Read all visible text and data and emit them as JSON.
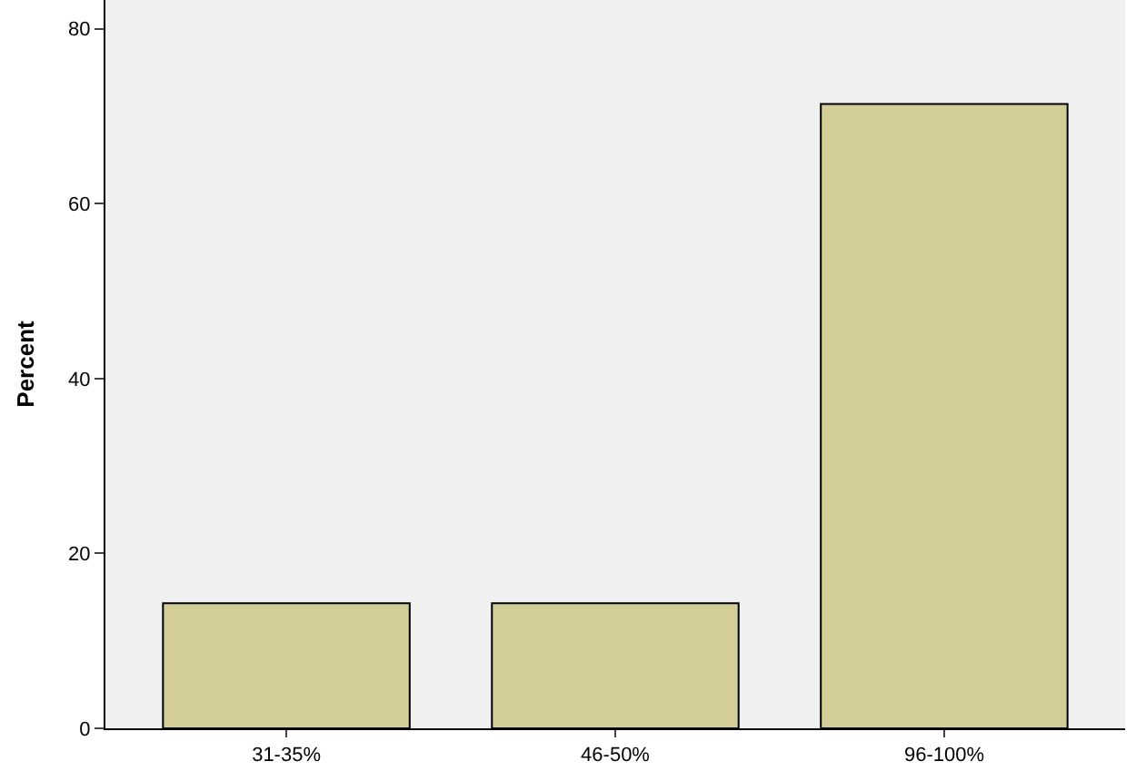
{
  "chart_data": {
    "type": "bar",
    "ylabel": "Percent",
    "categories": [
      "31-35%",
      "46-50%",
      "96-100%"
    ],
    "values": [
      14.3,
      14.3,
      71.4
    ],
    "color": "#d3ce97",
    "ylim": [
      0,
      83.3
    ],
    "yticks": [
      0,
      20,
      40,
      60,
      80
    ],
    "grid": false,
    "legend": false
  }
}
